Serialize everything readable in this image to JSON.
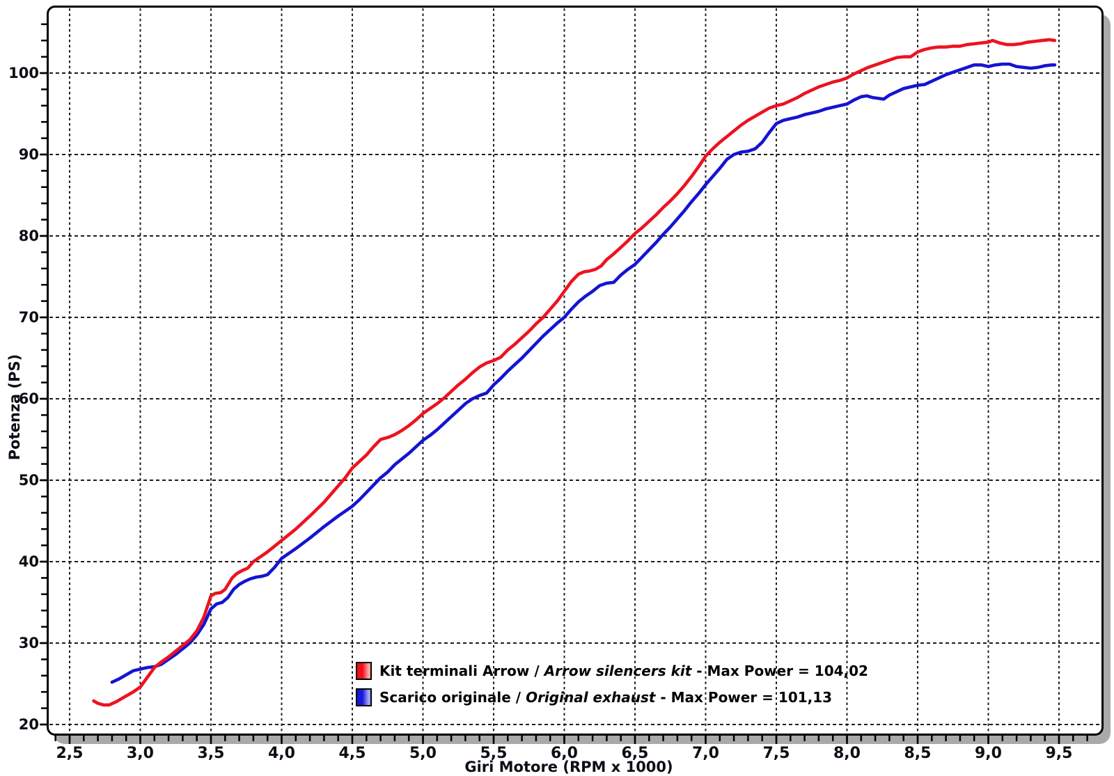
{
  "axes": {
    "xlabel": "Giri Motore (RPM x 1000)",
    "ylabel": "Potenza (PS)",
    "x_major": [
      {
        "v": 2.5,
        "label": "2,5"
      },
      {
        "v": 3.0,
        "label": "3,0"
      },
      {
        "v": 3.5,
        "label": "3,5"
      },
      {
        "v": 4.0,
        "label": "4,0"
      },
      {
        "v": 4.5,
        "label": "4,5"
      },
      {
        "v": 5.0,
        "label": "5,0"
      },
      {
        "v": 5.5,
        "label": "5,5"
      },
      {
        "v": 6.0,
        "label": "6,0"
      },
      {
        "v": 6.5,
        "label": "6,5"
      },
      {
        "v": 7.0,
        "label": "7,0"
      },
      {
        "v": 7.5,
        "label": "7,5"
      },
      {
        "v": 8.0,
        "label": "8,0"
      },
      {
        "v": 8.5,
        "label": "8,5"
      },
      {
        "v": 9.0,
        "label": "9,0"
      },
      {
        "v": 9.5,
        "label": "9,5"
      }
    ],
    "y_major": [
      {
        "v": 20,
        "label": "20"
      },
      {
        "v": 30,
        "label": "30"
      },
      {
        "v": 40,
        "label": "40"
      },
      {
        "v": 50,
        "label": "50"
      },
      {
        "v": 60,
        "label": "60"
      },
      {
        "v": 70,
        "label": "70"
      },
      {
        "v": 80,
        "label": "80"
      },
      {
        "v": 90,
        "label": "90"
      },
      {
        "v": 100,
        "label": "100"
      }
    ],
    "x_minor": {
      "from": 2.4,
      "to": 9.7,
      "step": 0.1
    },
    "y_minor": {
      "from": 20,
      "to": 106,
      "step": 2
    }
  },
  "legend": {
    "rows": [
      {
        "regular": "Kit terminali Arrow / ",
        "italic": "Arrow silencers kit",
        "suffix": " - Max Power = 104,02",
        "swatch_left": "#f20d1d",
        "swatch_right": "#ffa3a3"
      },
      {
        "regular": "Scarico originale / ",
        "italic": "Original exhaust",
        "suffix": " - Max Power = 101,13",
        "swatch_left": "#1717d8",
        "swatch_right": "#a3a3ff"
      }
    ]
  },
  "style": {
    "grid_color": "#1c1c1c",
    "tick_color": "#000000",
    "border_color": "#000000",
    "shadow_color": "#a9a9a9",
    "red": "#ed1220",
    "blue": "#1414d2"
  },
  "chart_data": {
    "type": "line",
    "title": "",
    "xlabel": "Giri Motore (RPM x 1000)",
    "ylabel": "Potenza (PS)",
    "xlim": [
      2.34,
      9.81
    ],
    "ylim": [
      18.6,
      108.3
    ],
    "grid": "dashed, x every 0.5 RPM, y every 10 PS",
    "legend_position": "inside bottom-left",
    "series": [
      {
        "id": "arrow_kit",
        "name": "Kit terminali Arrow / Arrow silencers kit",
        "max_power": "104,02",
        "color": "#ed1220",
        "points": [
          [
            2.67,
            22.9
          ],
          [
            2.7,
            22.6
          ],
          [
            2.74,
            22.4
          ],
          [
            2.78,
            22.4
          ],
          [
            2.83,
            22.8
          ],
          [
            2.9,
            23.5
          ],
          [
            2.95,
            24.0
          ],
          [
            3.0,
            24.6
          ],
          [
            3.05,
            25.8
          ],
          [
            3.1,
            27.0
          ],
          [
            3.15,
            27.7
          ],
          [
            3.2,
            28.3
          ],
          [
            3.25,
            29.0
          ],
          [
            3.3,
            29.7
          ],
          [
            3.35,
            30.4
          ],
          [
            3.4,
            31.5
          ],
          [
            3.45,
            33.2
          ],
          [
            3.5,
            35.8
          ],
          [
            3.53,
            36.1
          ],
          [
            3.57,
            36.2
          ],
          [
            3.6,
            36.6
          ],
          [
            3.65,
            38.0
          ],
          [
            3.68,
            38.5
          ],
          [
            3.72,
            38.9
          ],
          [
            3.76,
            39.2
          ],
          [
            3.8,
            40.0
          ],
          [
            3.85,
            40.6
          ],
          [
            3.9,
            41.2
          ],
          [
            3.95,
            41.9
          ],
          [
            4.0,
            42.6
          ],
          [
            4.1,
            44.0
          ],
          [
            4.2,
            45.6
          ],
          [
            4.3,
            47.3
          ],
          [
            4.4,
            49.3
          ],
          [
            4.45,
            50.3
          ],
          [
            4.5,
            51.5
          ],
          [
            4.55,
            52.3
          ],
          [
            4.6,
            53.1
          ],
          [
            4.65,
            54.1
          ],
          [
            4.7,
            55.0
          ],
          [
            4.76,
            55.3
          ],
          [
            4.8,
            55.6
          ],
          [
            4.85,
            56.1
          ],
          [
            4.9,
            56.7
          ],
          [
            4.95,
            57.4
          ],
          [
            5.0,
            58.2
          ],
          [
            5.05,
            58.8
          ],
          [
            5.1,
            59.4
          ],
          [
            5.15,
            60.1
          ],
          [
            5.2,
            60.9
          ],
          [
            5.25,
            61.7
          ],
          [
            5.3,
            62.4
          ],
          [
            5.35,
            63.2
          ],
          [
            5.4,
            63.9
          ],
          [
            5.45,
            64.4
          ],
          [
            5.5,
            64.7
          ],
          [
            5.55,
            65.1
          ],
          [
            5.6,
            66.0
          ],
          [
            5.65,
            66.7
          ],
          [
            5.7,
            67.5
          ],
          [
            5.75,
            68.3
          ],
          [
            5.8,
            69.2
          ],
          [
            5.85,
            70.0
          ],
          [
            5.9,
            71.0
          ],
          [
            5.95,
            72.0
          ],
          [
            6.0,
            73.2
          ],
          [
            6.05,
            74.4
          ],
          [
            6.1,
            75.3
          ],
          [
            6.14,
            75.6
          ],
          [
            6.18,
            75.7
          ],
          [
            6.22,
            75.9
          ],
          [
            6.26,
            76.3
          ],
          [
            6.3,
            77.1
          ],
          [
            6.35,
            77.8
          ],
          [
            6.4,
            78.6
          ],
          [
            6.45,
            79.4
          ],
          [
            6.5,
            80.3
          ],
          [
            6.55,
            81.0
          ],
          [
            6.6,
            81.8
          ],
          [
            6.65,
            82.6
          ],
          [
            6.7,
            83.5
          ],
          [
            6.75,
            84.3
          ],
          [
            6.8,
            85.2
          ],
          [
            6.85,
            86.2
          ],
          [
            6.9,
            87.3
          ],
          [
            6.95,
            88.5
          ],
          [
            7.0,
            89.8
          ],
          [
            7.05,
            90.7
          ],
          [
            7.1,
            91.5
          ],
          [
            7.15,
            92.2
          ],
          [
            7.2,
            92.9
          ],
          [
            7.25,
            93.6
          ],
          [
            7.3,
            94.2
          ],
          [
            7.35,
            94.7
          ],
          [
            7.4,
            95.2
          ],
          [
            7.45,
            95.7
          ],
          [
            7.5,
            96.0
          ],
          [
            7.55,
            96.2
          ],
          [
            7.6,
            96.6
          ],
          [
            7.65,
            97.0
          ],
          [
            7.7,
            97.5
          ],
          [
            7.75,
            97.9
          ],
          [
            7.8,
            98.3
          ],
          [
            7.85,
            98.6
          ],
          [
            7.9,
            98.9
          ],
          [
            7.95,
            99.1
          ],
          [
            8.0,
            99.4
          ],
          [
            8.05,
            99.9
          ],
          [
            8.1,
            100.3
          ],
          [
            8.15,
            100.7
          ],
          [
            8.2,
            101.0
          ],
          [
            8.25,
            101.3
          ],
          [
            8.3,
            101.6
          ],
          [
            8.35,
            101.9
          ],
          [
            8.4,
            102.0
          ],
          [
            8.45,
            102.0
          ],
          [
            8.5,
            102.6
          ],
          [
            8.55,
            102.9
          ],
          [
            8.6,
            103.1
          ],
          [
            8.65,
            103.2
          ],
          [
            8.7,
            103.2
          ],
          [
            8.75,
            103.3
          ],
          [
            8.8,
            103.3
          ],
          [
            8.85,
            103.5
          ],
          [
            8.9,
            103.6
          ],
          [
            8.95,
            103.7
          ],
          [
            9.0,
            103.8
          ],
          [
            9.03,
            104.0
          ],
          [
            9.08,
            103.7
          ],
          [
            9.13,
            103.5
          ],
          [
            9.18,
            103.5
          ],
          [
            9.23,
            103.6
          ],
          [
            9.28,
            103.8
          ],
          [
            9.33,
            103.9
          ],
          [
            9.38,
            104.0
          ],
          [
            9.43,
            104.1
          ],
          [
            9.47,
            104.0
          ]
        ]
      },
      {
        "id": "original_exhaust",
        "name": "Scarico originale / Original exhaust",
        "max_power": "101,13",
        "color": "#1414d2",
        "points": [
          [
            2.8,
            25.2
          ],
          [
            2.85,
            25.6
          ],
          [
            2.9,
            26.1
          ],
          [
            2.95,
            26.6
          ],
          [
            3.0,
            26.8
          ],
          [
            3.05,
            27.0
          ],
          [
            3.1,
            27.1
          ],
          [
            3.15,
            27.4
          ],
          [
            3.2,
            28.0
          ],
          [
            3.25,
            28.6
          ],
          [
            3.3,
            29.3
          ],
          [
            3.35,
            30.0
          ],
          [
            3.4,
            31.0
          ],
          [
            3.45,
            32.3
          ],
          [
            3.5,
            34.2
          ],
          [
            3.54,
            34.8
          ],
          [
            3.58,
            35.0
          ],
          [
            3.62,
            35.6
          ],
          [
            3.66,
            36.6
          ],
          [
            3.7,
            37.2
          ],
          [
            3.74,
            37.6
          ],
          [
            3.78,
            37.9
          ],
          [
            3.82,
            38.1
          ],
          [
            3.86,
            38.2
          ],
          [
            3.9,
            38.4
          ],
          [
            3.95,
            39.3
          ],
          [
            4.0,
            40.4
          ],
          [
            4.1,
            41.6
          ],
          [
            4.2,
            42.9
          ],
          [
            4.3,
            44.3
          ],
          [
            4.4,
            45.6
          ],
          [
            4.45,
            46.2
          ],
          [
            4.5,
            46.8
          ],
          [
            4.55,
            47.6
          ],
          [
            4.6,
            48.5
          ],
          [
            4.65,
            49.4
          ],
          [
            4.7,
            50.3
          ],
          [
            4.75,
            51.0
          ],
          [
            4.8,
            51.9
          ],
          [
            4.85,
            52.6
          ],
          [
            4.9,
            53.3
          ],
          [
            4.95,
            54.1
          ],
          [
            5.0,
            54.9
          ],
          [
            5.05,
            55.5
          ],
          [
            5.1,
            56.2
          ],
          [
            5.15,
            57.0
          ],
          [
            5.2,
            57.8
          ],
          [
            5.25,
            58.6
          ],
          [
            5.3,
            59.4
          ],
          [
            5.35,
            60.0
          ],
          [
            5.4,
            60.4
          ],
          [
            5.45,
            60.7
          ],
          [
            5.5,
            61.7
          ],
          [
            5.55,
            62.5
          ],
          [
            5.6,
            63.4
          ],
          [
            5.65,
            64.2
          ],
          [
            5.7,
            65.0
          ],
          [
            5.75,
            65.9
          ],
          [
            5.8,
            66.8
          ],
          [
            5.85,
            67.7
          ],
          [
            5.9,
            68.5
          ],
          [
            5.95,
            69.3
          ],
          [
            6.0,
            70.0
          ],
          [
            6.05,
            71.0
          ],
          [
            6.1,
            71.9
          ],
          [
            6.15,
            72.6
          ],
          [
            6.2,
            73.2
          ],
          [
            6.25,
            73.9
          ],
          [
            6.3,
            74.2
          ],
          [
            6.35,
            74.3
          ],
          [
            6.4,
            75.2
          ],
          [
            6.45,
            75.9
          ],
          [
            6.5,
            76.5
          ],
          [
            6.55,
            77.4
          ],
          [
            6.6,
            78.3
          ],
          [
            6.65,
            79.2
          ],
          [
            6.7,
            80.2
          ],
          [
            6.75,
            81.1
          ],
          [
            6.8,
            82.1
          ],
          [
            6.85,
            83.1
          ],
          [
            6.9,
            84.2
          ],
          [
            6.95,
            85.2
          ],
          [
            7.0,
            86.3
          ],
          [
            7.05,
            87.3
          ],
          [
            7.1,
            88.3
          ],
          [
            7.15,
            89.4
          ],
          [
            7.2,
            90.0
          ],
          [
            7.25,
            90.3
          ],
          [
            7.3,
            90.4
          ],
          [
            7.35,
            90.7
          ],
          [
            7.4,
            91.5
          ],
          [
            7.45,
            92.7
          ],
          [
            7.5,
            93.8
          ],
          [
            7.55,
            94.2
          ],
          [
            7.6,
            94.4
          ],
          [
            7.65,
            94.6
          ],
          [
            7.7,
            94.9
          ],
          [
            7.75,
            95.1
          ],
          [
            7.8,
            95.3
          ],
          [
            7.85,
            95.6
          ],
          [
            7.9,
            95.8
          ],
          [
            7.95,
            96.0
          ],
          [
            8.0,
            96.2
          ],
          [
            8.05,
            96.7
          ],
          [
            8.1,
            97.1
          ],
          [
            8.14,
            97.2
          ],
          [
            8.18,
            97.0
          ],
          [
            8.22,
            96.9
          ],
          [
            8.26,
            96.8
          ],
          [
            8.3,
            97.3
          ],
          [
            8.35,
            97.7
          ],
          [
            8.4,
            98.1
          ],
          [
            8.45,
            98.3
          ],
          [
            8.5,
            98.5
          ],
          [
            8.55,
            98.6
          ],
          [
            8.6,
            99.0
          ],
          [
            8.65,
            99.4
          ],
          [
            8.7,
            99.8
          ],
          [
            8.75,
            100.1
          ],
          [
            8.8,
            100.4
          ],
          [
            8.85,
            100.7
          ],
          [
            8.9,
            101.0
          ],
          [
            8.95,
            101.0
          ],
          [
            9.0,
            100.8
          ],
          [
            9.05,
            101.0
          ],
          [
            9.1,
            101.1
          ],
          [
            9.15,
            101.1
          ],
          [
            9.2,
            100.8
          ],
          [
            9.25,
            100.7
          ],
          [
            9.3,
            100.6
          ],
          [
            9.35,
            100.7
          ],
          [
            9.4,
            100.9
          ],
          [
            9.45,
            101.0
          ],
          [
            9.47,
            101.0
          ]
        ]
      }
    ]
  }
}
